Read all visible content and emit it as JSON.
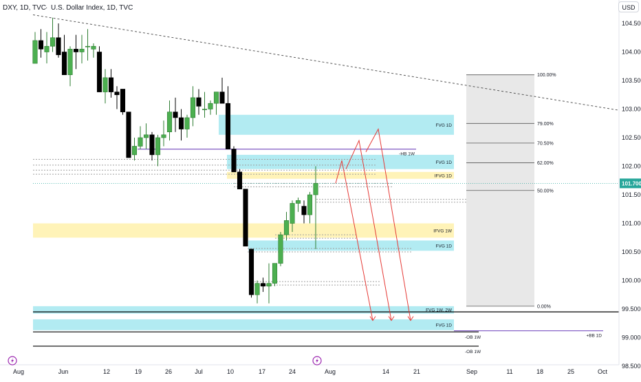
{
  "header": {
    "symbol_title": "DXY, 1D, TVC",
    "separator": "·",
    "description": "U.S. Dollar Index, 1D, TVC"
  },
  "currency_button": "USD",
  "colors": {
    "up": "#4caf50",
    "down": "#000000",
    "fvg_blue": "#b2ebf2",
    "fvg_yellow": "#fff3b8",
    "arrow": "#e53935",
    "ob_purple": "#7e57c2",
    "price_line": "#26a69a",
    "fib_zone": "#e8e8e8",
    "event_icon": "#9c27b0"
  },
  "event_icons": [
    "lightning-icon",
    "lightning-icon"
  ],
  "chart_data": {
    "type": "candlestick",
    "title": "DXY, 1D, TVC",
    "y_axis": {
      "range": [
        98.4,
        105.0
      ],
      "ticks": [
        "104.500",
        "104.000",
        "103.500",
        "103.000",
        "102.500",
        "102.000",
        "101.500",
        "101.000",
        "100.500",
        "100.000",
        "99.500",
        "99.000",
        "98.500"
      ],
      "last_price_label": "101.700",
      "last_price": 101.7
    },
    "x_axis": {
      "ticks": [
        "Aug",
        "Jun",
        "12",
        "19",
        "26",
        "Jul",
        "10",
        "17",
        "24",
        "Aug",
        "14",
        "21",
        "Sep",
        "11",
        "18",
        "25",
        "Oct"
      ]
    },
    "candles": [
      {
        "o": 103.8,
        "h": 104.35,
        "l": 103.85,
        "c": 104.2
      },
      {
        "o": 104.2,
        "h": 104.4,
        "l": 103.9,
        "c": 104.05
      },
      {
        "o": 104.0,
        "h": 104.35,
        "l": 103.8,
        "c": 104.1
      },
      {
        "o": 104.1,
        "h": 104.6,
        "l": 104.0,
        "c": 104.25
      },
      {
        "o": 104.25,
        "h": 104.5,
        "l": 103.9,
        "c": 103.95
      },
      {
        "o": 104.0,
        "h": 104.3,
        "l": 103.6,
        "c": 103.6
      },
      {
        "o": 103.6,
        "h": 104.1,
        "l": 103.4,
        "c": 104.05
      },
      {
        "o": 104.05,
        "h": 104.3,
        "l": 103.7,
        "c": 104.0
      },
      {
        "o": 104.0,
        "h": 104.3,
        "l": 103.8,
        "c": 104.05
      },
      {
        "o": 104.1,
        "h": 104.4,
        "l": 103.85,
        "c": 104.1
      },
      {
        "o": 104.05,
        "h": 104.15,
        "l": 103.9,
        "c": 104.1
      },
      {
        "o": 104.0,
        "h": 104.1,
        "l": 103.3,
        "c": 103.3
      },
      {
        "o": 103.3,
        "h": 103.7,
        "l": 103.1,
        "c": 103.55
      },
      {
        "o": 103.55,
        "h": 103.7,
        "l": 103.2,
        "c": 103.3
      },
      {
        "o": 103.3,
        "h": 103.4,
        "l": 103.0,
        "c": 103.25
      },
      {
        "o": 103.35,
        "h": 103.35,
        "l": 102.9,
        "c": 102.95
      },
      {
        "o": 102.95,
        "h": 102.95,
        "l": 102.15,
        "c": 102.15
      },
      {
        "o": 102.2,
        "h": 102.5,
        "l": 102.1,
        "c": 102.35
      },
      {
        "o": 102.35,
        "h": 102.7,
        "l": 102.3,
        "c": 102.5
      },
      {
        "o": 102.5,
        "h": 102.75,
        "l": 102.3,
        "c": 102.55
      },
      {
        "o": 102.55,
        "h": 102.6,
        "l": 102.1,
        "c": 102.2
      },
      {
        "o": 102.2,
        "h": 102.55,
        "l": 102.0,
        "c": 102.5
      },
      {
        "o": 102.5,
        "h": 102.8,
        "l": 102.35,
        "c": 102.55
      },
      {
        "o": 102.6,
        "h": 103.15,
        "l": 102.45,
        "c": 102.95
      },
      {
        "o": 102.95,
        "h": 103.2,
        "l": 102.6,
        "c": 102.85
      },
      {
        "o": 102.85,
        "h": 103.0,
        "l": 102.45,
        "c": 102.65
      },
      {
        "o": 102.65,
        "h": 102.9,
        "l": 102.5,
        "c": 102.85
      },
      {
        "o": 102.85,
        "h": 103.4,
        "l": 102.7,
        "c": 103.2
      },
      {
        "o": 103.2,
        "h": 103.35,
        "l": 102.9,
        "c": 103.05
      },
      {
        "o": 103.0,
        "h": 103.3,
        "l": 102.85,
        "c": 103.0
      },
      {
        "o": 103.0,
        "h": 103.15,
        "l": 102.9,
        "c": 103.1
      },
      {
        "o": 103.1,
        "h": 103.3,
        "l": 102.9,
        "c": 103.3
      },
      {
        "o": 103.3,
        "h": 103.55,
        "l": 103.1,
        "c": 103.1
      },
      {
        "o": 103.1,
        "h": 103.4,
        "l": 102.3,
        "c": 102.3
      },
      {
        "o": 102.3,
        "h": 102.35,
        "l": 101.9,
        "c": 101.9
      },
      {
        "o": 101.9,
        "h": 101.95,
        "l": 101.6,
        "c": 101.6
      },
      {
        "o": 101.6,
        "h": 101.6,
        "l": 100.6,
        "c": 100.6
      },
      {
        "o": 100.55,
        "h": 100.55,
        "l": 99.7,
        "c": 99.75
      },
      {
        "o": 99.75,
        "h": 100.0,
        "l": 99.6,
        "c": 99.95
      },
      {
        "o": 99.95,
        "h": 100.05,
        "l": 99.8,
        "c": 99.9
      },
      {
        "o": 99.9,
        "h": 100.3,
        "l": 99.6,
        "c": 99.95
      },
      {
        "o": 99.95,
        "h": 100.3,
        "l": 99.9,
        "c": 100.3
      },
      {
        "o": 100.3,
        "h": 100.85,
        "l": 100.25,
        "c": 100.8
      },
      {
        "o": 100.8,
        "h": 101.2,
        "l": 100.7,
        "c": 101.05
      },
      {
        "o": 101.0,
        "h": 101.4,
        "l": 100.85,
        "c": 101.35
      },
      {
        "o": 101.35,
        "h": 101.45,
        "l": 101.2,
        "c": 101.4
      },
      {
        "o": 101.3,
        "h": 101.4,
        "l": 101.0,
        "c": 101.15
      },
      {
        "o": 101.15,
        "h": 101.55,
        "l": 101.0,
        "c": 101.5
      },
      {
        "o": 101.5,
        "h": 102.0,
        "l": 100.55,
        "c": 101.7
      }
    ],
    "zones": [
      {
        "label": "FVG 1D",
        "color": "blue",
        "top": 102.9,
        "bottom": 102.55
      },
      {
        "label": "FVG 1D",
        "color": "blue",
        "top": 102.2,
        "bottom": 101.95
      },
      {
        "label": "IFVG 1D",
        "color": "yellow",
        "top": 101.9,
        "bottom": 101.78
      },
      {
        "label": "IFVG 1W",
        "color": "yellow",
        "top": 101.0,
        "bottom": 100.75
      },
      {
        "label": "FVG 1D",
        "color": "blue",
        "top": 100.7,
        "bottom": 100.52
      },
      {
        "label": "FVG 1W, 2W",
        "color": "blue",
        "top": 99.55,
        "bottom": 99.42
      },
      {
        "label": "FVG 1D",
        "color": "blue",
        "top": 99.32,
        "bottom": 99.13
      }
    ],
    "levels": [
      {
        "label": "-OB 1W",
        "value": 99.1
      },
      {
        "label": "-OB 1W",
        "value": 98.85
      }
    ],
    "ob_lines": [
      {
        "label": "-HB 1W",
        "value": 102.3
      },
      {
        "label": "+BB 1D",
        "value": 99.12
      }
    ],
    "fibonacci": {
      "top": 103.6,
      "bottom": 99.55,
      "levels": [
        {
          "label": "100.00%",
          "ratio": 1.0
        },
        {
          "label": "79.00%",
          "ratio": 0.79
        },
        {
          "label": "70.50%",
          "ratio": 0.705
        },
        {
          "label": "62.00%",
          "ratio": 0.62
        },
        {
          "label": "50.00%",
          "ratio": 0.5
        },
        {
          "label": "0.00%",
          "ratio": 0.0
        }
      ]
    },
    "trendline": {
      "from": 104.65,
      "to": 102.98
    },
    "projections": [
      {
        "from": 101.7,
        "peak": 102.1,
        "end": 99.3
      },
      {
        "from": 101.95,
        "peak": 102.45,
        "end": 99.3
      },
      {
        "from": 102.25,
        "peak": 102.65,
        "end": 99.3
      }
    ]
  }
}
